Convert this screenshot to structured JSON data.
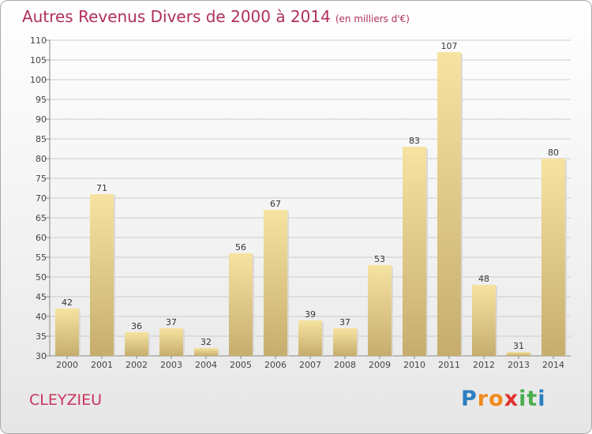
{
  "title": "Autres Revenus Divers de 2000 à 2014",
  "subtitle": "(en milliers d'€)",
  "commune": "CLEYZIEU",
  "logo": {
    "letters": [
      "P",
      "r",
      "o",
      "x",
      "i",
      "t",
      "i"
    ],
    "colors": [
      "#2d7fc1",
      "#f08a1c",
      "#f08a1c",
      "#e0322f",
      "#4bae4f",
      "#4bae4f",
      "#2d7fc1"
    ]
  },
  "colors": {
    "title": "#b0305a",
    "bar_light": "#f7e3a1",
    "bar_dark": "#c6ad6e",
    "grid": "#cccccc"
  },
  "chart_data": {
    "type": "bar",
    "categories": [
      "2000",
      "2001",
      "2002",
      "2003",
      "2004",
      "2005",
      "2006",
      "2007",
      "2008",
      "2009",
      "2010",
      "2011",
      "2012",
      "2013",
      "2014"
    ],
    "values": [
      42,
      71,
      36,
      37,
      32,
      56,
      67,
      39,
      37,
      53,
      83,
      107,
      48,
      31,
      80
    ],
    "ylim": [
      30,
      110
    ],
    "yticks": [
      30,
      35,
      40,
      45,
      50,
      55,
      60,
      65,
      70,
      75,
      80,
      85,
      90,
      95,
      100,
      105,
      110
    ],
    "grid": true,
    "xlabel": "",
    "ylabel": ""
  }
}
